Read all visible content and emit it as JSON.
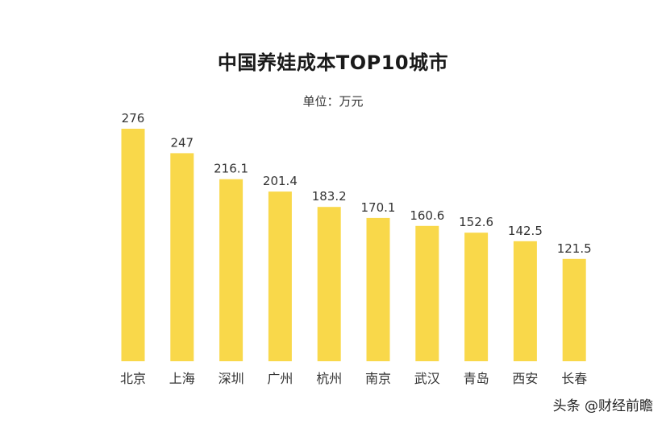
{
  "chart_data": {
    "type": "bar",
    "title": "中国养娃成本TOP10城市",
    "subtitle": "单位：万元",
    "categories": [
      "北京",
      "上海",
      "深圳",
      "广州",
      "杭州",
      "南京",
      "武汉",
      "青岛",
      "西安",
      "长春"
    ],
    "values": [
      276,
      247,
      216.1,
      201.4,
      183.2,
      170.1,
      160.6,
      152.6,
      142.5,
      121.5
    ],
    "value_labels": [
      "276",
      "247",
      "216.1",
      "201.4",
      "183.2",
      "170.1",
      "160.6",
      "152.6",
      "142.5",
      "121.5"
    ],
    "ylim": [
      0,
      276
    ],
    "grid": false,
    "bar_color": "#F9D84A",
    "xlabel": "",
    "ylabel": ""
  },
  "watermark": "头条 @财经前瞻"
}
